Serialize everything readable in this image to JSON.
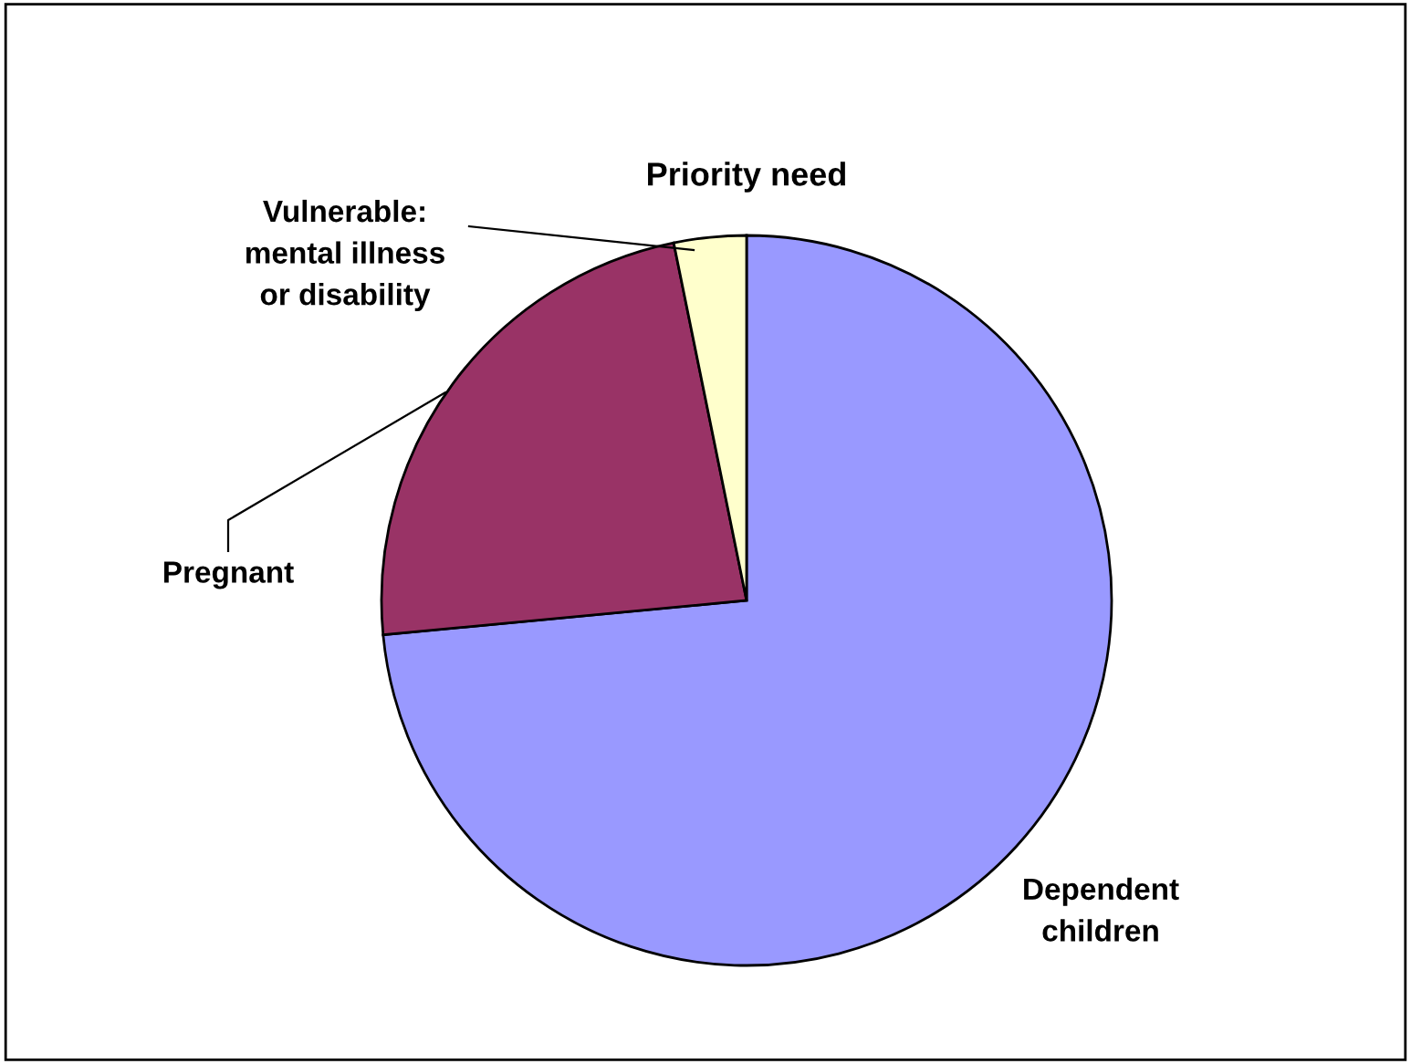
{
  "chart_data": {
    "type": "pie",
    "title": "Priority need",
    "categories": [
      "Dependent\nchildren",
      "Pregnant",
      "Vulnerable:\nmental illness\nor disability"
    ],
    "values": [
      73.5,
      23.3,
      3.2
    ],
    "colors": [
      "#9999ff",
      "#993366",
      "#ffffcc"
    ],
    "legend": false
  }
}
